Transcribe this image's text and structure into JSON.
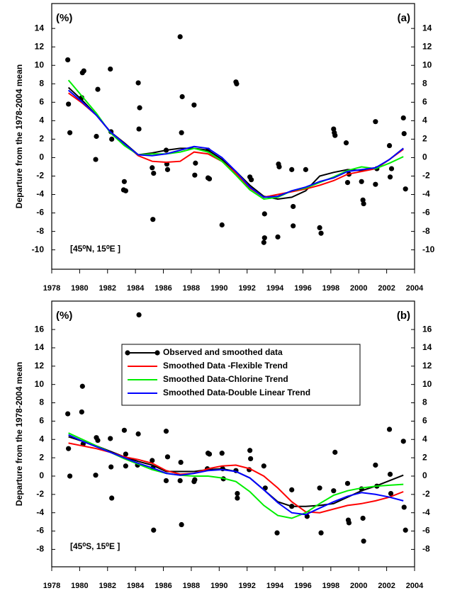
{
  "chart_data": [
    {
      "type": "line",
      "label": "(a)",
      "unit_label": "(%)",
      "location": "[45⁰N, 15⁰E ]",
      "ylabel": "Departure from the 1978-2004 mean",
      "xlim": [
        1978,
        2004
      ],
      "xticks": [
        1978,
        1980,
        1982,
        1984,
        1986,
        1988,
        1990,
        1992,
        1994,
        1996,
        1998,
        2000,
        2002,
        2004
      ],
      "ylim": [
        -12.1,
        16.7
      ],
      "yticks": [
        -10,
        -8,
        -6,
        -4,
        -2,
        0,
        2,
        4,
        6,
        8,
        10,
        12,
        14
      ],
      "x": [
        1979.2,
        1980.2,
        1981.2,
        1982.2,
        1983.2,
        1984.2,
        1985.2,
        1986.2,
        1987.2,
        1988.2,
        1989.2,
        1990.2,
        1991.2,
        1992.2,
        1993.2,
        1994.2,
        1995.2,
        1996.2,
        1997.2,
        1998.2,
        1999.2,
        2000.2,
        2001.2,
        2002.2,
        2003.2
      ],
      "series": [
        {
          "color": "#000000",
          "values": [
            7.6,
            6.2,
            4.6,
            2.8,
            1.6,
            0.3,
            0.5,
            0.8,
            1.0,
            1.0,
            0.8,
            -0.2,
            -1.5,
            -3.0,
            -4.2,
            -4.5,
            -4.3,
            -3.6,
            -2.0,
            -1.6,
            -1.3,
            -1.4,
            -1.2,
            -0.2,
            1.0
          ],
          "points": {
            "x": [
              1979.15,
              1979.2,
              1979.3,
              1980.2,
              1980.3,
              1980.15,
              1981.3,
              1981.2,
              1981.15,
              1982.2,
              1982.25,
              1982.3,
              1983.2,
              1983.15,
              1983.3,
              1984.2,
              1984.3,
              1984.25,
              1985.2,
              1985.3,
              1985.25,
              1986.2,
              1986.25,
              1986.3,
              1987.2,
              1987.35,
              1987.3,
              1988.2,
              1988.3,
              1988.25,
              1989.2,
              1989.2,
              1989.3,
              1990.2,
              1991.2,
              1991.25,
              1992.2,
              1992.3,
              1993.2,
              1993.25,
              1993.25,
              1994.2,
              1994.25,
              1994.3,
              1995.2,
              1995.3,
              1995.3,
              1996.2,
              1997.2,
              1997.3,
              1998.2,
              1998.25,
              1998.3,
              1999.1,
              1999.2,
              1999.3,
              2000.2,
              2000.3,
              2000.35,
              2001.2,
              2001.2,
              2001.3,
              2002.2,
              2002.25,
              2002.35,
              2003.2,
              2003.25,
              2003.35
            ],
            "values": [
              10.6,
              5.8,
              2.7,
              9.2,
              9.4,
              6.5,
              7.4,
              2.3,
              -0.2,
              9.6,
              2.8,
              2.0,
              -2.6,
              -3.5,
              -3.6,
              8.1,
              5.4,
              3.1,
              -1.1,
              -1.7,
              -6.7,
              0.8,
              -0.7,
              -1.3,
              13.1,
              6.6,
              2.7,
              5.7,
              -0.6,
              -1.9,
              0.8,
              -2.2,
              -2.3,
              -7.3,
              8.2,
              8.0,
              -2.1,
              -2.4,
              -9.2,
              -8.7,
              -6.1,
              -8.6,
              -0.7,
              -1.0,
              -1.3,
              -5.3,
              -7.4,
              -1.3,
              -7.6,
              -8.2,
              3.1,
              2.7,
              2.4,
              1.6,
              -2.7,
              -1.8,
              -2.6,
              -4.6,
              -5.0,
              3.9,
              -2.9,
              -1.2,
              1.3,
              -2.1,
              -1.2,
              4.3,
              2.6,
              -3.4
            ]
          }
        },
        {
          "color": "#ff0000",
          "values": [
            7.0,
            5.9,
            4.6,
            2.8,
            1.5,
            0.2,
            -0.4,
            -0.5,
            -0.4,
            0.6,
            0.4,
            -0.4,
            -1.7,
            -3.3,
            -4.3,
            -4.0,
            -3.7,
            -3.4,
            -3.0,
            -2.5,
            -1.8,
            -1.5,
            -1.2,
            -0.2,
            0.9
          ]
        },
        {
          "color": "#00ee00",
          "values": [
            8.4,
            6.6,
            4.8,
            2.7,
            1.3,
            0.3,
            0.4,
            0.4,
            0.6,
            1.0,
            0.6,
            -0.4,
            -1.9,
            -3.5,
            -4.5,
            -4.3,
            -3.6,
            -3.3,
            -2.7,
            -2.1,
            -1.4,
            -1.0,
            -1.2,
            -0.6,
            0.1
          ]
        },
        {
          "color": "#0000ff",
          "values": [
            7.3,
            6.0,
            4.6,
            2.8,
            1.5,
            0.3,
            0.2,
            0.4,
            0.8,
            1.2,
            1.0,
            0.0,
            -1.5,
            -3.2,
            -4.3,
            -4.2,
            -3.6,
            -3.2,
            -2.6,
            -2.2,
            -1.5,
            -1.3,
            -1.1,
            -0.2,
            1.0
          ]
        }
      ]
    },
    {
      "type": "line",
      "label": "(b)",
      "unit_label": "(%)",
      "location": "[45⁰S, 15⁰E ]",
      "ylabel": "Departure from the 1978-2004 mean",
      "legend": "upper center",
      "xlim": [
        1978,
        2004
      ],
      "xticks": [
        1978,
        1980,
        1982,
        1984,
        1986,
        1988,
        1990,
        1992,
        1994,
        1996,
        1998,
        2000,
        2002,
        2004
      ],
      "ylim": [
        -9.9,
        19.1
      ],
      "yticks": [
        -8,
        -6,
        -4,
        -2,
        0,
        2,
        4,
        6,
        8,
        10,
        12,
        14,
        16
      ],
      "x": [
        1979.2,
        1980.2,
        1981.2,
        1982.2,
        1983.2,
        1984.2,
        1985.2,
        1986.2,
        1987.2,
        1988.2,
        1989.2,
        1990.2,
        1991.2,
        1992.2,
        1993.2,
        1994.2,
        1995.2,
        1996.2,
        1997.2,
        1998.2,
        1999.2,
        2000.2,
        2001.2,
        2002.2,
        2003.2
      ],
      "series": [
        {
          "name": "Observed and smoothed data",
          "color": "#000000",
          "values": [
            4.3,
            3.8,
            3.3,
            2.7,
            2.1,
            1.6,
            1.2,
            0.5,
            0.5,
            0.5,
            0.7,
            0.8,
            0.5,
            -0.2,
            -1.5,
            -2.8,
            -3.3,
            -3.3,
            -3.2,
            -3.0,
            -2.3,
            -1.6,
            -1.1,
            -0.5,
            0.1
          ],
          "points": {
            "x": [
              1979.15,
              1979.2,
              1979.3,
              1980.2,
              1980.15,
              1980.25,
              1981.2,
              1981.3,
              1981.15,
              1982.2,
              1982.25,
              1982.3,
              1983.2,
              1983.3,
              1983.3,
              1984.25,
              1984.2,
              1984.15,
              1985.2,
              1985.25,
              1985.3,
              1986.2,
              1986.3,
              1986.2,
              1987.25,
              1987.2,
              1987.3,
              1988.2,
              1988.25,
              1989.2,
              1989.3,
              1989.15,
              1990.2,
              1990.25,
              1990.3,
              1991.2,
              1991.3,
              1991.3,
              1992.2,
              1992.25,
              1992.15,
              1993.2,
              1993.3,
              1994.15,
              1995.2,
              1995.2,
              1996.3,
              1997.2,
              1997.3,
              1998.3,
              1998.2,
              1999.2,
              1999.25,
              1999.3,
              2000.2,
              2000.3,
              2000.35,
              2001.2,
              2001.3,
              2002.2,
              2002.25,
              2002.3,
              2003.2,
              2003.25,
              2003.35
            ],
            "values": [
              6.8,
              3.0,
              0.0,
              9.8,
              7.0,
              3.5,
              4.2,
              3.9,
              0.1,
              4.1,
              1.0,
              -2.4,
              5.0,
              2.4,
              1.1,
              17.6,
              4.6,
              1.2,
              1.7,
              0.9,
              -5.9,
              4.9,
              2.1,
              -0.5,
              1.5,
              -0.5,
              -5.3,
              -0.6,
              -0.4,
              2.5,
              2.4,
              0.8,
              2.5,
              0.8,
              -0.3,
              0.6,
              -1.9,
              -2.4,
              2.8,
              1.9,
              0.7,
              1.1,
              -1.3,
              -6.2,
              -1.5,
              -3.3,
              -4.4,
              -1.3,
              -6.2,
              2.6,
              -1.6,
              -0.8,
              -4.8,
              -5.1,
              -1.4,
              -4.6,
              -7.1,
              1.2,
              -1.1,
              5.1,
              0.2,
              -1.9,
              3.8,
              -3.4,
              -5.9
            ]
          }
        },
        {
          "name": "Smoothed Data -Flexible Trend",
          "color": "#ff0000",
          "values": [
            3.6,
            3.3,
            3.0,
            2.6,
            2.1,
            1.8,
            1.4,
            0.6,
            0.2,
            0.3,
            0.8,
            1.1,
            1.2,
            0.8,
            0.0,
            -1.3,
            -2.8,
            -3.9,
            -4.0,
            -3.6,
            -3.2,
            -3.0,
            -2.7,
            -2.3,
            -1.7
          ]
        },
        {
          "name": "Smoothed Data-Chlorine Trend",
          "color": "#00ee00",
          "values": [
            4.7,
            4.0,
            3.3,
            2.6,
            1.9,
            1.3,
            0.7,
            0.3,
            0.1,
            0.0,
            0.0,
            -0.2,
            -0.6,
            -1.7,
            -3.2,
            -4.3,
            -4.6,
            -4.0,
            -3.0,
            -2.1,
            -1.6,
            -1.3,
            -1.1,
            -1.0,
            -0.9
          ]
        },
        {
          "name": "Smoothed Data-Double Linear Trend",
          "color": "#0000ff",
          "values": [
            4.5,
            3.8,
            3.2,
            2.6,
            2.0,
            1.4,
            0.9,
            0.3,
            0.1,
            0.3,
            0.6,
            0.7,
            0.5,
            -0.2,
            -1.5,
            -2.9,
            -4.0,
            -4.2,
            -3.5,
            -2.8,
            -2.2,
            -1.8,
            -2.0,
            -2.3,
            -2.7
          ]
        }
      ]
    }
  ]
}
